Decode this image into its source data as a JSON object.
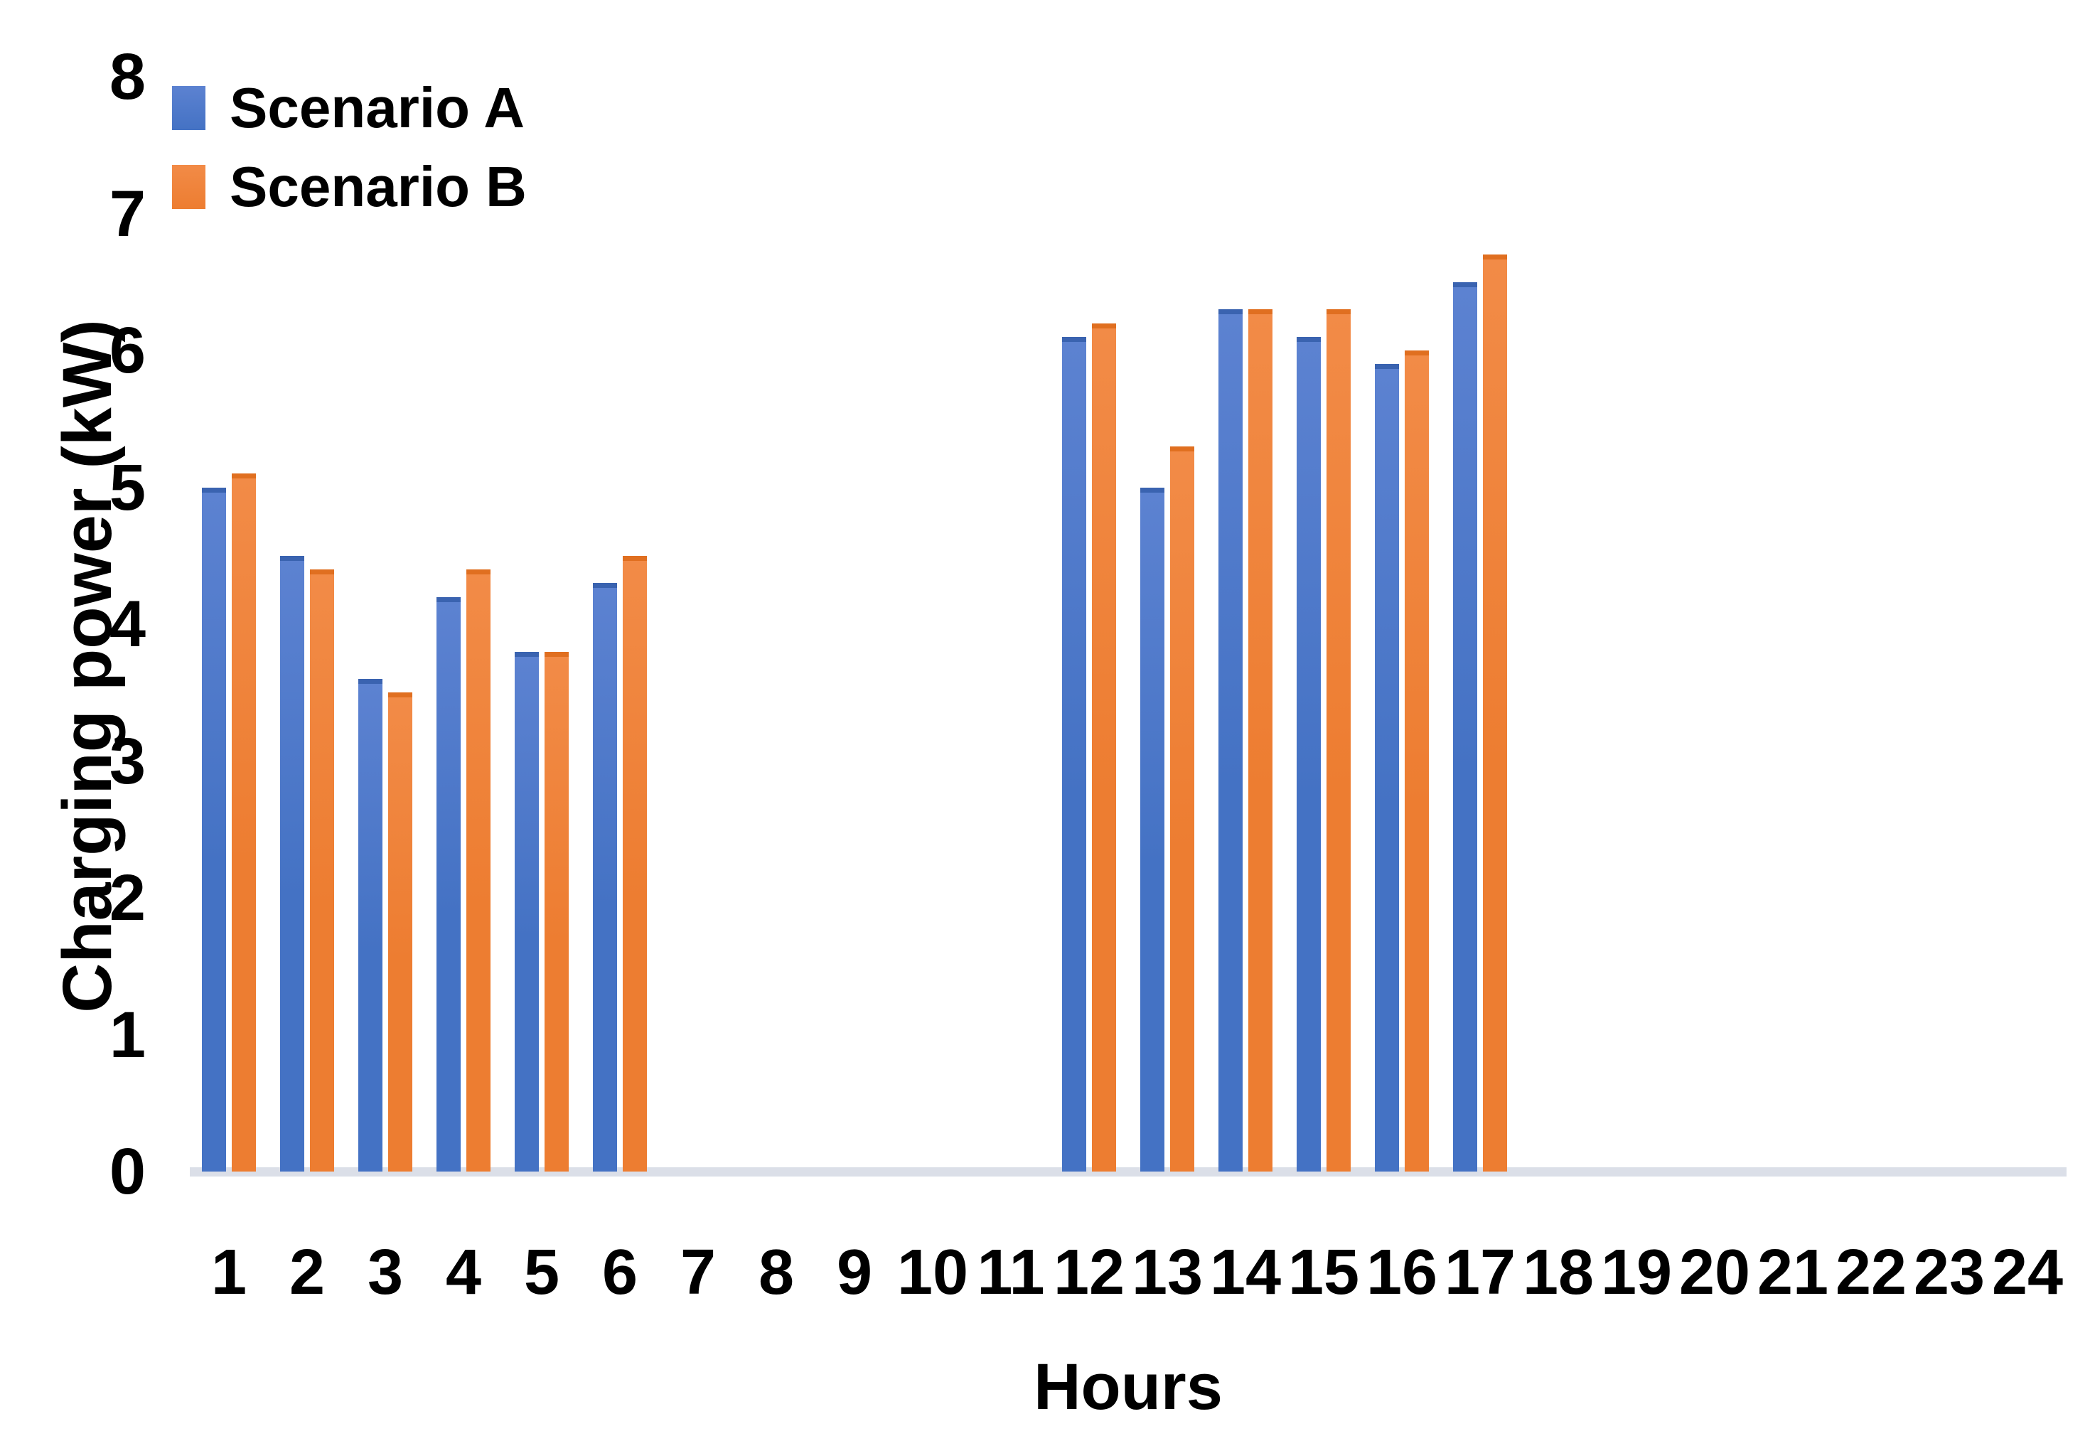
{
  "chart_data": {
    "type": "bar",
    "title": "",
    "xlabel": "Hours",
    "ylabel": "Charging power (kW)",
    "categories": [
      1,
      2,
      3,
      4,
      5,
      6,
      7,
      8,
      9,
      10,
      11,
      12,
      13,
      14,
      15,
      16,
      17,
      18,
      19,
      20,
      21,
      22,
      23,
      24
    ],
    "series": [
      {
        "name": "Scenario A",
        "color": "#4472C4",
        "color_light": "#5c82d1",
        "color_dark": "#3a63b0",
        "values": [
          5.0,
          4.5,
          3.6,
          4.2,
          3.8,
          4.3,
          0,
          0,
          0,
          0,
          0,
          6.1,
          5.0,
          6.3,
          6.1,
          5.9,
          6.5,
          0,
          0,
          0,
          0,
          0,
          0,
          0
        ]
      },
      {
        "name": "Scenario B",
        "color": "#ED7D31",
        "color_light": "#f28b47",
        "color_dark": "#e06f20",
        "values": [
          5.1,
          4.4,
          3.5,
          4.4,
          3.8,
          4.5,
          0,
          0,
          0,
          0,
          0,
          6.2,
          5.3,
          6.3,
          6.3,
          6.0,
          6.7,
          0,
          0,
          0,
          0,
          0,
          0,
          0
        ]
      }
    ],
    "ylim": [
      0,
      8
    ],
    "yticks": [
      0,
      1,
      2,
      3,
      4,
      5,
      6,
      7,
      8
    ],
    "legend_position": "top-left",
    "grid": false,
    "axis_line_color": "#dbdfe8",
    "background_color": "#ffffff"
  },
  "legend": {
    "items": [
      {
        "label": "Scenario A",
        "color": "#4472C4"
      },
      {
        "label": "Scenario B",
        "color": "#ED7D31"
      }
    ]
  }
}
